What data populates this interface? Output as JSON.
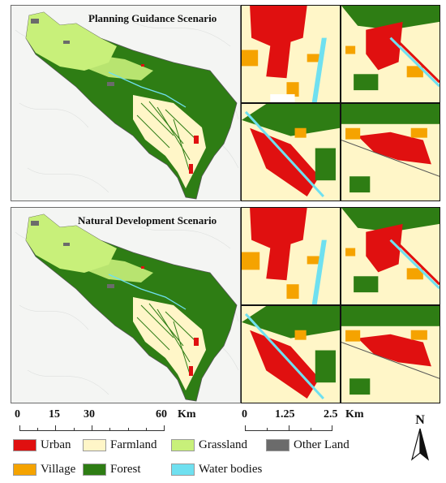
{
  "panels": [
    {
      "title": "Planning Guidance Scenario"
    },
    {
      "title": "Natural Development Scenario"
    }
  ],
  "scale_bars": [
    {
      "ticks": [
        "0",
        "15",
        "30",
        "60"
      ],
      "unit": "Km"
    },
    {
      "ticks": [
        "0",
        "1.25",
        "2.5"
      ],
      "unit": "Km"
    }
  ],
  "north_arrow": {
    "label": "N"
  },
  "legend": [
    {
      "label": "Urban",
      "color": "#e01010"
    },
    {
      "label": "Farmland",
      "color": "#fff6c8"
    },
    {
      "label": "Grassland",
      "color": "#c8f07a"
    },
    {
      "label": "Other Land",
      "color": "#6b6b6b"
    },
    {
      "label": "Village",
      "color": "#f5a300"
    },
    {
      "label": "Forest",
      "color": "#2e7d14"
    },
    {
      "label": "Water bodies",
      "color": "#6fe0f0"
    }
  ]
}
